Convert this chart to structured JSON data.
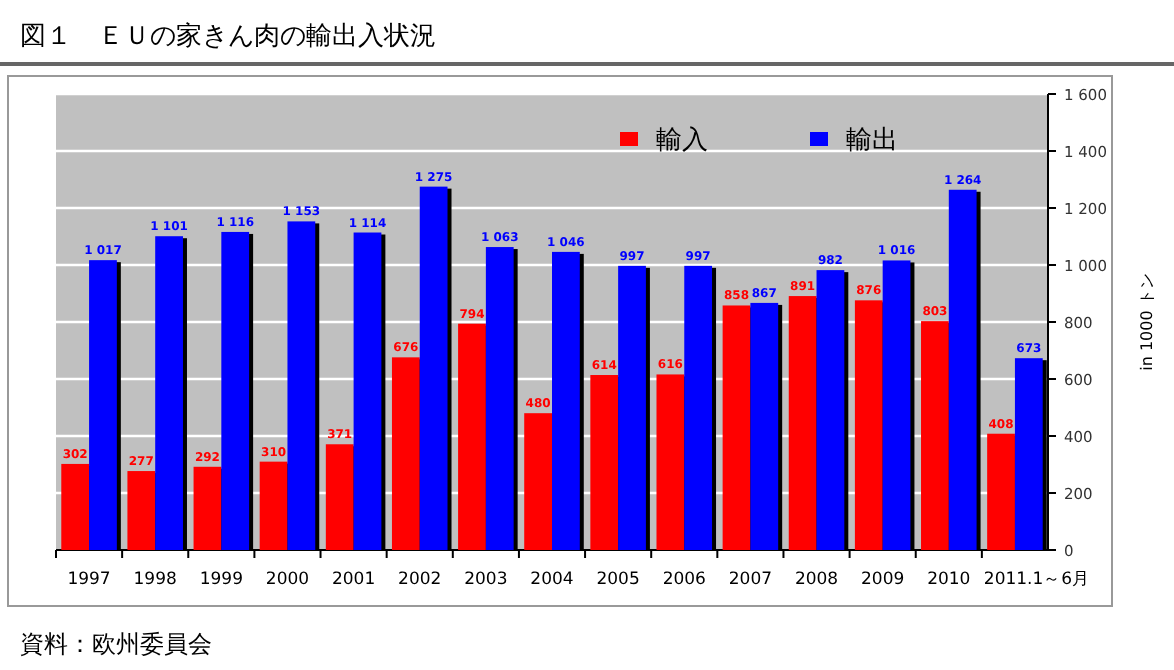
{
  "chart_data": {
    "type": "bar",
    "title": "図１　ＥＵの家きん肉の輸出入状況",
    "ylabel": "in 1000 トン",
    "categories": [
      "1997",
      "1998",
      "1999",
      "2000",
      "2001",
      "2002",
      "2003",
      "2004",
      "2005",
      "2006",
      "2007",
      "2008",
      "2009",
      "2010",
      "2011.1～6月"
    ],
    "series": [
      {
        "name": "輸入",
        "color": "#ff0000",
        "values": [
          302,
          277,
          292,
          310,
          371,
          676,
          794,
          480,
          614,
          616,
          858,
          891,
          876,
          803,
          408
        ],
        "value_labels": [
          "302",
          "277",
          "292",
          "310",
          "371",
          "676",
          "794",
          "480",
          "614",
          "616",
          "858",
          "891",
          "876",
          "803",
          "408"
        ]
      },
      {
        "name": "輸出",
        "color": "#0000ff",
        "values": [
          1017,
          1101,
          1116,
          1153,
          1114,
          1275,
          1063,
          1046,
          997,
          997,
          867,
          982,
          1016,
          1264,
          673
        ],
        "value_labels": [
          "1 017",
          "1 101",
          "1 116",
          "1 153",
          "1 114",
          "1 275",
          "1 063",
          "1 046",
          "997",
          "997",
          "867",
          "982",
          "1 016",
          "1 264",
          "673"
        ]
      }
    ],
    "ylim": [
      0,
      1600
    ],
    "yticks": [
      0,
      200,
      400,
      600,
      800,
      {
        "value": 1000,
        "label": "1 000"
      },
      {
        "value": 1200,
        "label": "1 200"
      },
      {
        "value": 1400,
        "label": "1 400"
      },
      {
        "value": 1600,
        "label": "1 600"
      }
    ],
    "grid": "y",
    "legend": "top",
    "annotations": [
      "資料：欧州委員会"
    ]
  }
}
